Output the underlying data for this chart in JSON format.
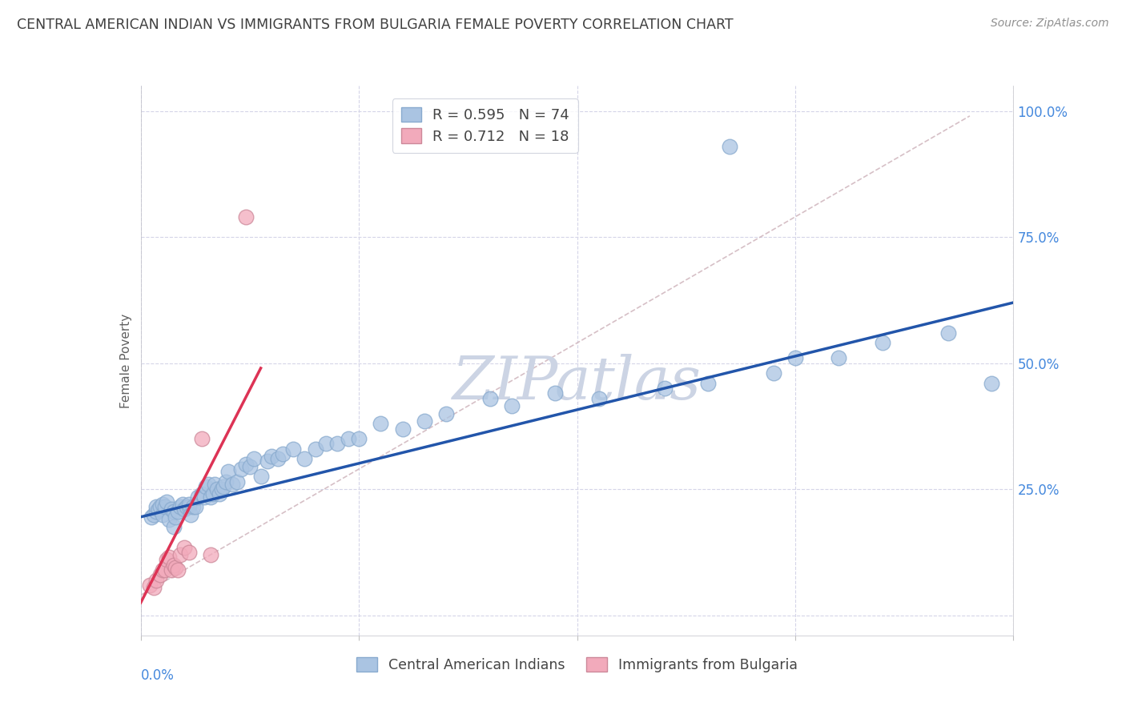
{
  "title": "CENTRAL AMERICAN INDIAN VS IMMIGRANTS FROM BULGARIA FEMALE POVERTY CORRELATION CHART",
  "source": "Source: ZipAtlas.com",
  "xlabel_start": "0.0%",
  "ylabel": "Female Poverty",
  "xlim": [
    0.0,
    0.4
  ],
  "ylim": [
    -0.04,
    1.05
  ],
  "legend_r1": "R = 0.595",
  "legend_n1": "N = 74",
  "legend_r2": "R = 0.712",
  "legend_n2": "N = 18",
  "blue_color": "#aac4e2",
  "pink_color": "#f2aabb",
  "blue_line_color": "#2255aa",
  "pink_line_color": "#dd3355",
  "dashed_line_color": "#ccb0b8",
  "grid_color": "#d5d5e8",
  "title_color": "#404040",
  "source_color": "#909090",
  "ytick_color": "#4488dd",
  "xtick_color": "#4488dd",
  "blue_scatter_x": [
    0.005,
    0.006,
    0.007,
    0.007,
    0.008,
    0.009,
    0.01,
    0.01,
    0.011,
    0.012,
    0.013,
    0.014,
    0.015,
    0.015,
    0.016,
    0.017,
    0.018,
    0.019,
    0.02,
    0.021,
    0.022,
    0.022,
    0.023,
    0.024,
    0.025,
    0.026,
    0.028,
    0.029,
    0.03,
    0.031,
    0.032,
    0.033,
    0.034,
    0.035,
    0.036,
    0.037,
    0.038,
    0.039,
    0.04,
    0.042,
    0.044,
    0.046,
    0.048,
    0.05,
    0.052,
    0.055,
    0.058,
    0.06,
    0.063,
    0.065,
    0.07,
    0.075,
    0.08,
    0.085,
    0.09,
    0.095,
    0.1,
    0.11,
    0.12,
    0.13,
    0.14,
    0.16,
    0.17,
    0.19,
    0.21,
    0.24,
    0.26,
    0.27,
    0.29,
    0.3,
    0.32,
    0.34,
    0.37,
    0.39
  ],
  "blue_scatter_y": [
    0.195,
    0.2,
    0.205,
    0.215,
    0.21,
    0.215,
    0.2,
    0.22,
    0.215,
    0.225,
    0.19,
    0.21,
    0.175,
    0.205,
    0.195,
    0.205,
    0.215,
    0.22,
    0.21,
    0.215,
    0.215,
    0.22,
    0.2,
    0.215,
    0.215,
    0.235,
    0.24,
    0.235,
    0.255,
    0.26,
    0.235,
    0.24,
    0.26,
    0.25,
    0.24,
    0.25,
    0.255,
    0.265,
    0.285,
    0.26,
    0.265,
    0.29,
    0.3,
    0.295,
    0.31,
    0.275,
    0.305,
    0.315,
    0.31,
    0.32,
    0.33,
    0.31,
    0.33,
    0.34,
    0.34,
    0.35,
    0.35,
    0.38,
    0.37,
    0.385,
    0.4,
    0.43,
    0.415,
    0.44,
    0.43,
    0.45,
    0.46,
    0.93,
    0.48,
    0.51,
    0.51,
    0.54,
    0.56,
    0.46
  ],
  "pink_scatter_x": [
    0.004,
    0.006,
    0.007,
    0.009,
    0.01,
    0.011,
    0.012,
    0.013,
    0.014,
    0.015,
    0.016,
    0.017,
    0.018,
    0.02,
    0.022,
    0.028,
    0.032,
    0.048
  ],
  "pink_scatter_y": [
    0.06,
    0.055,
    0.07,
    0.08,
    0.09,
    0.09,
    0.11,
    0.115,
    0.09,
    0.1,
    0.095,
    0.09,
    0.12,
    0.135,
    0.125,
    0.35,
    0.12,
    0.79
  ],
  "blue_trend_x": [
    0.0,
    0.4
  ],
  "blue_trend_y": [
    0.195,
    0.62
  ],
  "pink_trend_x": [
    0.0,
    0.055
  ],
  "pink_trend_y": [
    0.025,
    0.49
  ],
  "dashed_trend_x": [
    0.0,
    0.38
  ],
  "dashed_trend_y": [
    0.04,
    0.99
  ],
  "watermark": "ZIPatlas",
  "watermark_color": "#ccd4e4",
  "legend_text_color": "#404040",
  "legend_r_color": "#4488dd",
  "legend_n_color": "#4488dd"
}
